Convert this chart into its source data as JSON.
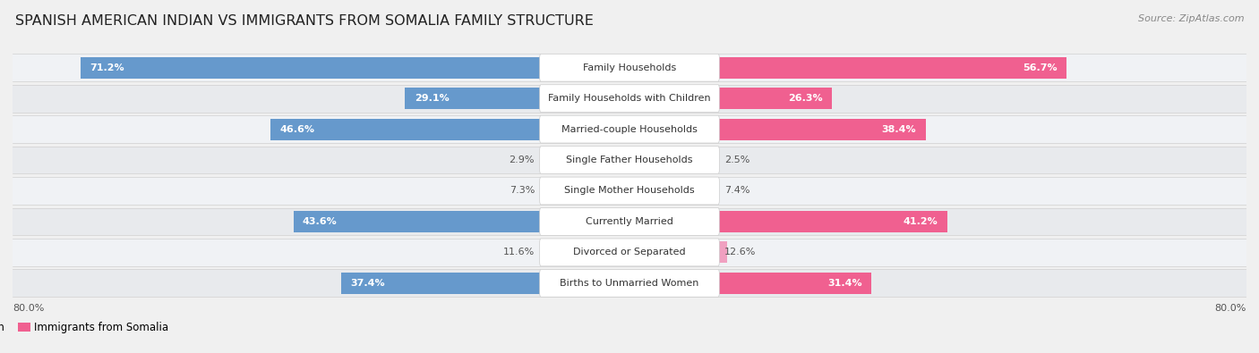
{
  "title": "SPANISH AMERICAN INDIAN VS IMMIGRANTS FROM SOMALIA FAMILY STRUCTURE",
  "source": "Source: ZipAtlas.com",
  "categories": [
    "Family Households",
    "Family Households with Children",
    "Married-couple Households",
    "Single Father Households",
    "Single Mother Households",
    "Currently Married",
    "Divorced or Separated",
    "Births to Unmarried Women"
  ],
  "left_values": [
    71.2,
    29.1,
    46.6,
    2.9,
    7.3,
    43.6,
    11.6,
    37.4
  ],
  "right_values": [
    56.7,
    26.3,
    38.4,
    2.5,
    7.4,
    41.2,
    12.6,
    31.4
  ],
  "left_color_large": "#6699CC",
  "left_color_small": "#AABFDC",
  "right_color_large": "#F06090",
  "right_color_small": "#F0A0C0",
  "axis_max": 80.0,
  "left_label": "Spanish American Indian",
  "right_label": "Immigrants from Somalia",
  "bg_color": "#f0f0f0",
  "row_bg_even": "#f8f8f8",
  "row_bg_odd": "#ebebeb",
  "title_fontsize": 11.5,
  "label_fontsize": 8.0,
  "value_fontsize": 8.0,
  "source_fontsize": 8.0,
  "legend_fontsize": 8.5,
  "large_threshold": 15
}
